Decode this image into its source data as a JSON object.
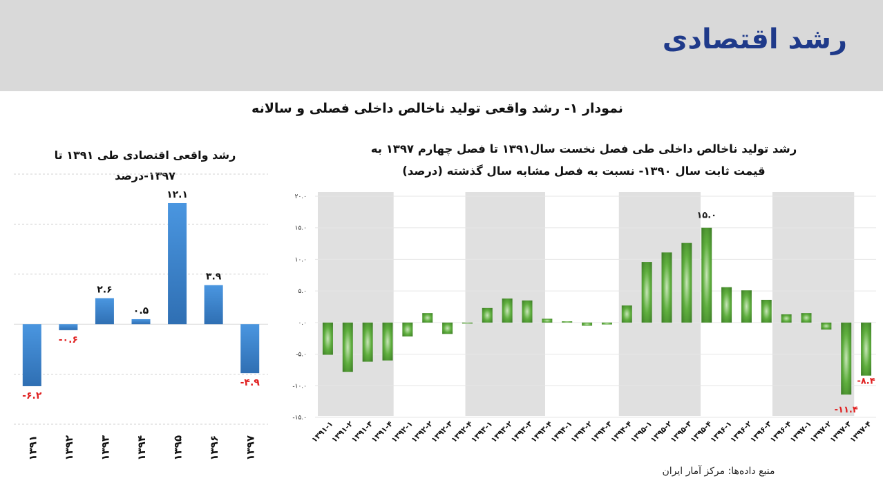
{
  "header": {
    "title": "رشد اقتصادی"
  },
  "figure_title": "نمودار ۱- رشد واقعی تولید ناخالص داخلی فصلی و سالانه",
  "source": "منبع داده‌ها: مرکز آمار ایران",
  "colors": {
    "header_bg": "#d9d9d9",
    "title": "#1f3a8a",
    "annual_bar": "#3f88d4",
    "quarterly_bar": "#4a9a2e",
    "negative_label": "#e02020",
    "band": "#e0e0e0"
  },
  "chart_data": [
    {
      "type": "bar",
      "title_lines": [
        "رشد واقعی اقتصادی طی ۱۳۹۱ تا",
        "۱۳۹۷-درصد"
      ],
      "categories": [
        "۱۳۹۱",
        "۱۳۹۲",
        "۱۳۹۳",
        "۱۳۹۴",
        "۱۳۹۵",
        "۱۳۹۶",
        "۱۳۹۷"
      ],
      "values": [
        -6.2,
        -0.6,
        2.6,
        0.5,
        12.1,
        3.9,
        -4.9
      ],
      "data_labels": [
        "-۶.۲",
        "-۰.۶",
        "۲.۶",
        "۰.۵",
        "۱۲.۱",
        "۳.۹",
        "-۴.۹"
      ],
      "ylim": [
        -10,
        15
      ],
      "grid": true
    },
    {
      "type": "bar",
      "title_lines": [
        "رشد تولید ناخالص داخلی طی فصل نخست سال۱۳۹۱ تا فصل چهارم ۱۳۹۷ به",
        "قیمت ثابت سال ۱۳۹۰- نسبت به فصل مشابه سال گذشته (درصد)"
      ],
      "categories": [
        "۱۳۹۱-۱",
        "۱۳۹۱-۲",
        "۱۳۹۱-۳",
        "۱۳۹۱-۴",
        "۱۳۹۲-۱",
        "۱۳۹۲-۲",
        "۱۳۹۲-۳",
        "۱۳۹۲-۴",
        "۱۳۹۳-۱",
        "۱۳۹۳-۲",
        "۱۳۹۳-۳",
        "۱۳۹۳-۴",
        "۱۳۹۴-۱",
        "۱۳۹۴-۲",
        "۱۳۹۴-۳",
        "۱۳۹۴-۴",
        "۱۳۹۵-۱",
        "۱۳۹۵-۲",
        "۱۳۹۵-۳",
        "۱۳۹۵-۴",
        "۱۳۹۶-۱",
        "۱۳۹۶-۲",
        "۱۳۹۶-۳",
        "۱۳۹۶-۴",
        "۱۳۹۷-۱",
        "۱۳۹۷-۲",
        "۱۳۹۷-۳",
        "۱۳۹۷-۴"
      ],
      "values": [
        -5.1,
        -7.8,
        -6.2,
        -6.0,
        -2.2,
        1.5,
        -1.8,
        -0.1,
        2.3,
        3.8,
        3.5,
        0.6,
        0.2,
        -0.5,
        -0.3,
        2.7,
        9.6,
        11.1,
        12.6,
        15.0,
        5.6,
        5.1,
        3.6,
        1.3,
        1.5,
        -1.1,
        -11.4,
        -8.4
      ],
      "data_labels": {
        "19": "۱۵.۰",
        "26": "-۱۱.۴",
        "27": "-۸.۴"
      },
      "yticks": [
        "۲۰.۰",
        "۱۵.۰",
        "۱۰.۰",
        "۵.۰",
        "۰.۰",
        "-۵.۰",
        "-۱۰.۰",
        "-۱۵.۰"
      ],
      "ylim": [
        -15,
        20
      ],
      "grid": true
    }
  ]
}
